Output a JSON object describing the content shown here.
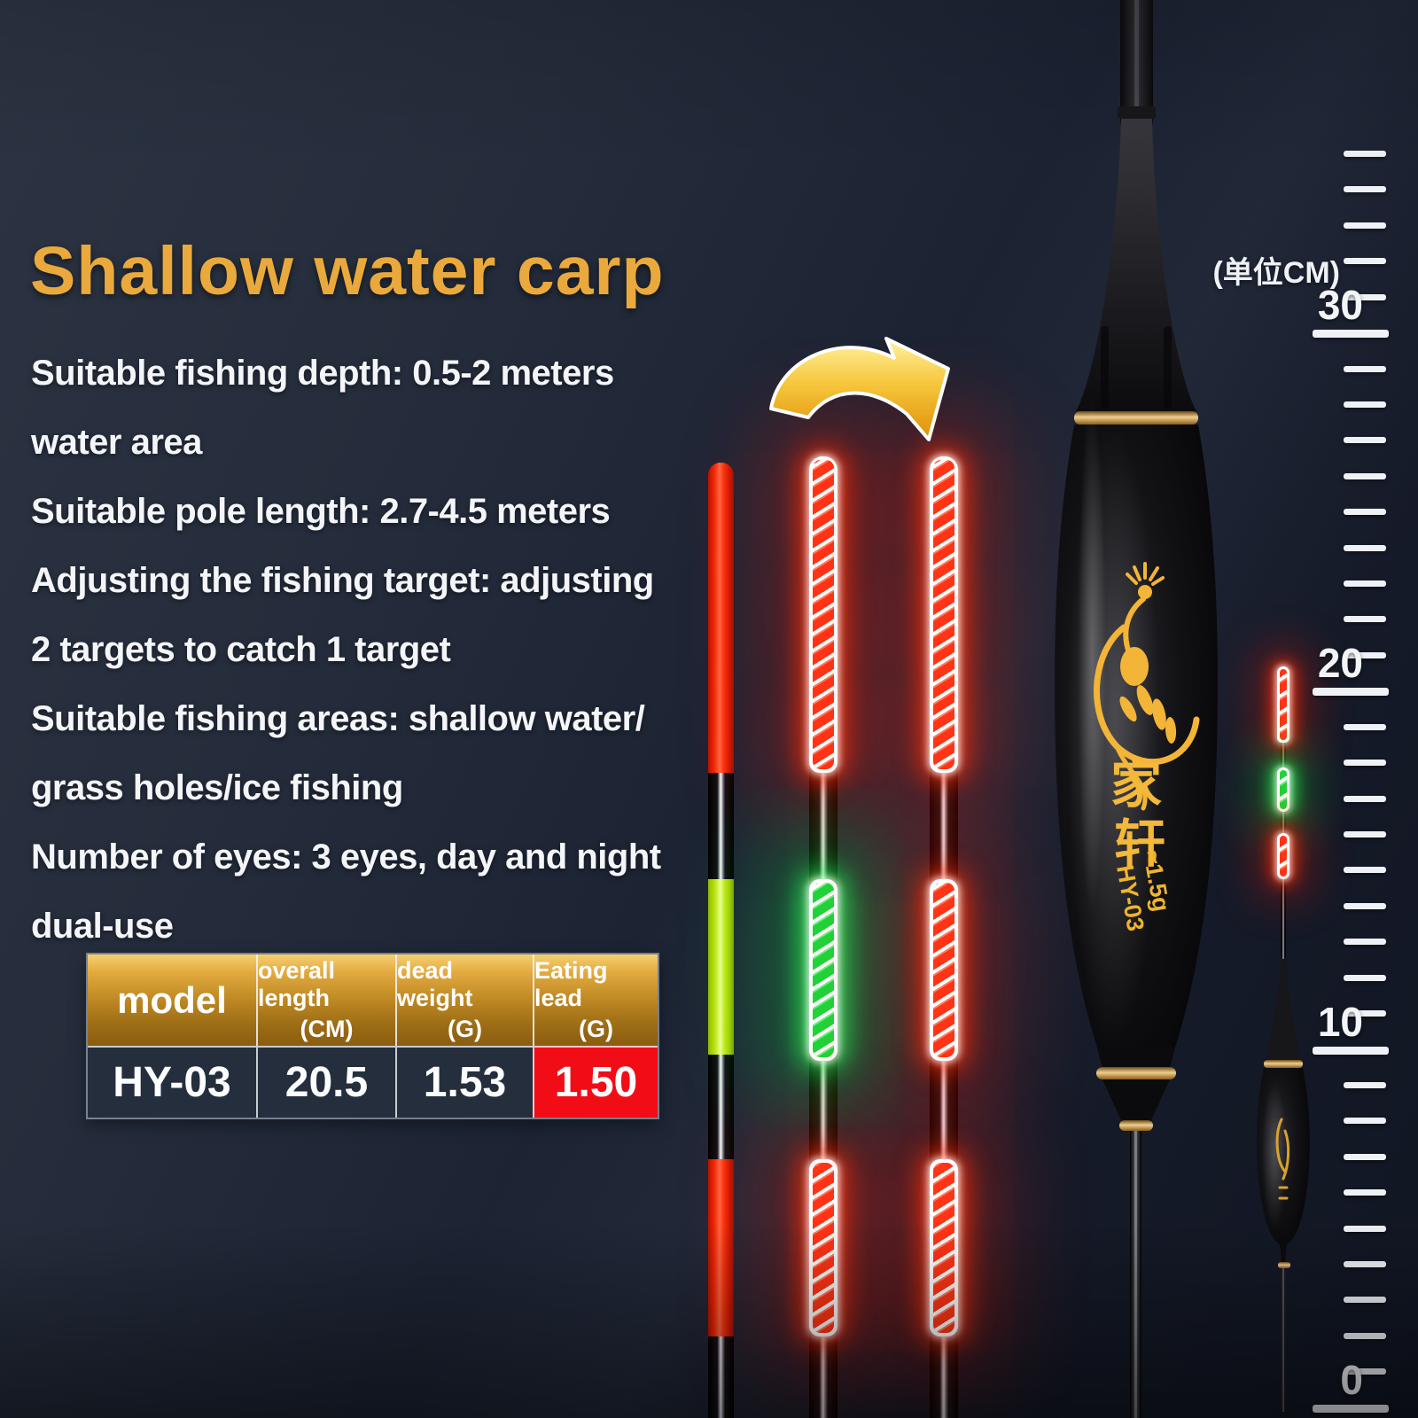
{
  "title": "Shallow water carp",
  "description_lines": [
    "Suitable fishing depth: 0.5-2 meters",
    "water area",
    "Suitable pole length: 2.7-4.5 meters",
    "Adjusting the fishing target: adjusting",
    "2 targets to catch 1 target",
    "Suitable fishing areas: shallow water/",
    "grass holes/ice fishing",
    "Number of eyes: 3 eyes, day and night",
    "dual-use"
  ],
  "spec_table": {
    "headers": [
      {
        "label": "model",
        "sub": ""
      },
      {
        "label": "overall length",
        "sub": "(CM)"
      },
      {
        "label": "dead weight",
        "sub": "(G)"
      },
      {
        "label": "Eating lead",
        "sub": "(G)"
      }
    ],
    "row": [
      "HY-03",
      "20.5",
      "1.53",
      "1.50"
    ]
  },
  "ruler": {
    "unit_label": "(单位CM)",
    "numbers": [
      "30",
      "20",
      "10",
      "0"
    ]
  },
  "float_product": {
    "brand_char_1": "家",
    "brand_char_2": "轩",
    "weight_label": "≈1.5g",
    "model_label": "HY-03"
  },
  "colors": {
    "title_gold": "#eaa93c",
    "led_red": "#ff2d0e",
    "led_green": "#23e43c",
    "tail_yellow": "#c9ef1e",
    "highlight_red": "#f20d16",
    "table_gold": "#c9962d"
  }
}
